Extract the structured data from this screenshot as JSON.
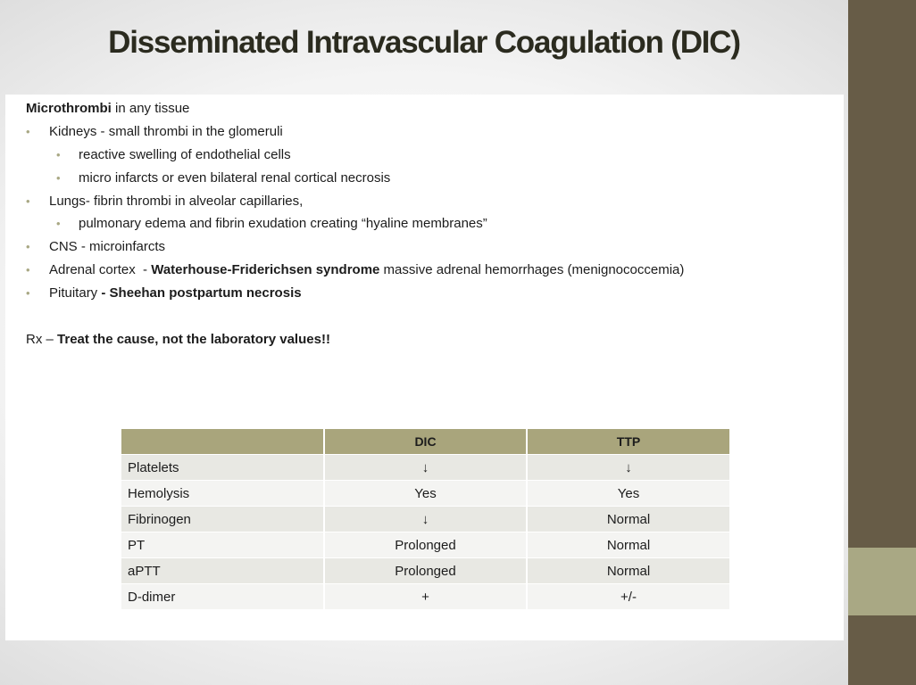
{
  "slide": {
    "title": "Disseminated Intravascular Coagulation (DIC)"
  },
  "content": {
    "line1_bold": "Microthrombi",
    "line1_rest": " in any tissue",
    "kidneys": "Kidneys - small thrombi in the glomeruli",
    "kidneys_sub1": "reactive swelling of endothelial cells",
    "kidneys_sub2": "micro infarcts or even bilateral renal cortical necrosis",
    "lungs": "Lungs- fibrin thrombi in alveolar capillaries,",
    "lungs_sub1": "pulmonary edema and fibrin exudation creating “hyaline membranes”",
    "cns": "CNS - microinfarcts",
    "adrenal_pre": "Adrenal cortex  - ",
    "adrenal_bold": "Waterhouse-Friderichsen syndrome",
    "adrenal_post": " massive adrenal hemorrhages (menignococcemia)",
    "pituitary_pre": "Pituitary ",
    "pituitary_bold": "- Sheehan postpartum necrosis",
    "rx_pre": "Rx – ",
    "rx_bold": "Treat the cause, not the laboratory values!!"
  },
  "table": {
    "headers": [
      "",
      "DIC",
      "TTP"
    ],
    "rows": [
      [
        "Platelets",
        "↓",
        "↓"
      ],
      [
        "Hemolysis",
        "Yes",
        "Yes"
      ],
      [
        "Fibrinogen",
        "↓",
        "Normal"
      ],
      [
        "PT",
        "Prolonged",
        "Normal"
      ],
      [
        "aPTT",
        "Prolonged",
        "Normal"
      ],
      [
        "D-dimer",
        "+",
        "+/-"
      ]
    ]
  },
  "colors": {
    "sidebar": "#675c47",
    "accent": "#a9a884",
    "table_header": "#a9a57c"
  }
}
